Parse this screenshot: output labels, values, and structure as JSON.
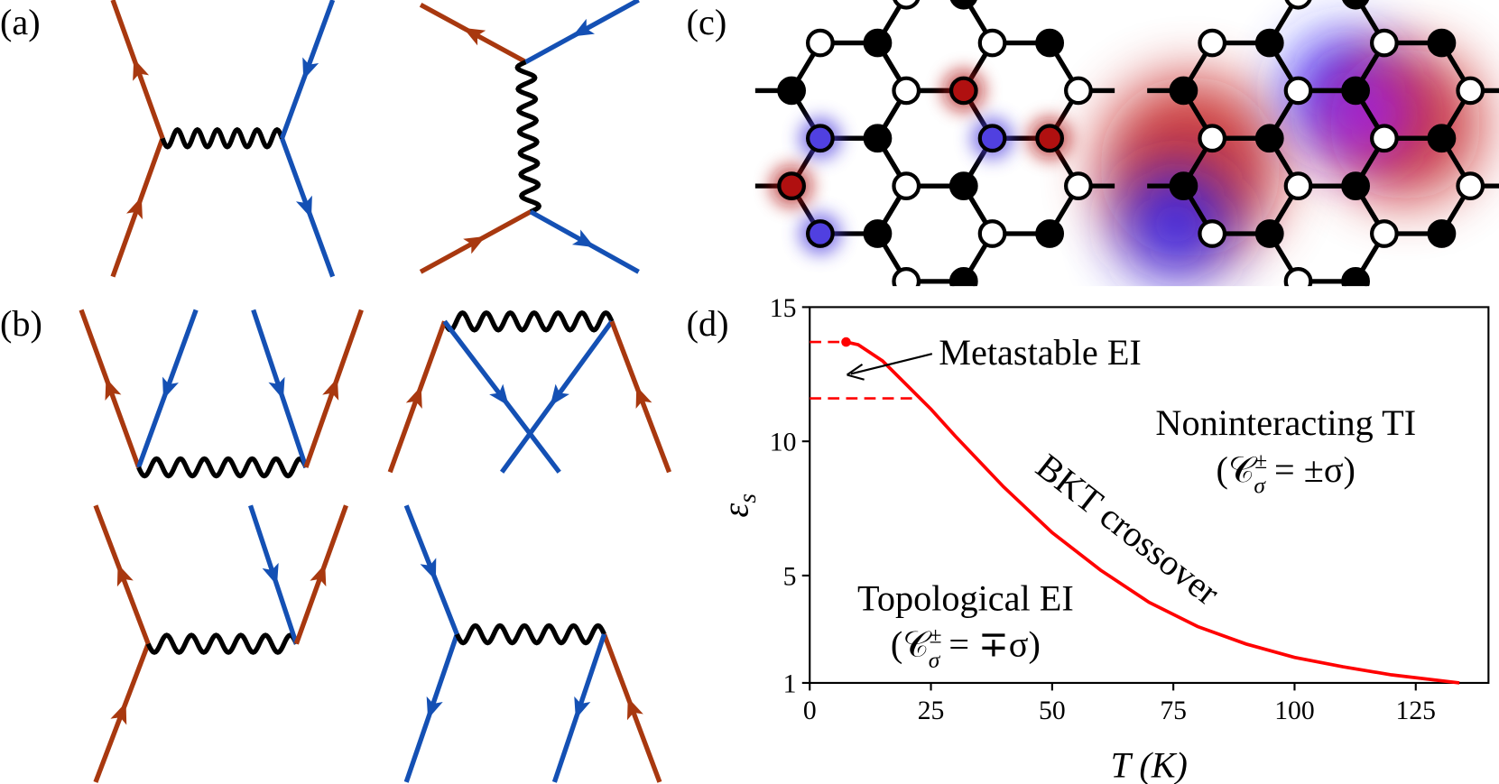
{
  "panels": {
    "a": "(a)",
    "b": "(b)",
    "c": "(c)",
    "d": "(d)"
  },
  "chart_data": {
    "type": "line",
    "x_label": "T (K)",
    "y_label": "ε",
    "y_label_sub": "s",
    "x": [
      7.5,
      10,
      15,
      20,
      25,
      30,
      40,
      50,
      60,
      70,
      80,
      90,
      100,
      110,
      120,
      134
    ],
    "series": [
      {
        "color": "#ff0000",
        "values": [
          13.7,
          13.6,
          13.0,
          12.1,
          11.2,
          10.2,
          8.3,
          6.6,
          5.2,
          4.0,
          3.1,
          2.45,
          1.95,
          1.6,
          1.3,
          1.0
        ]
      }
    ],
    "reference_lines": [
      {
        "y": 13.7,
        "x": 7.5
      },
      {
        "y": 11.6,
        "x": 22
      }
    ],
    "xlim": [
      0,
      140
    ],
    "xticks": [
      0,
      25,
      50,
      75,
      100,
      125
    ],
    "ylim": [
      1,
      15
    ],
    "yticks": [
      1,
      5,
      10,
      15
    ],
    "annotations": [
      {
        "text": "Metastable EI"
      },
      {
        "text": "Noninteracting TI",
        "formula": {
          "base": "(𝒞",
          "sup": "±",
          "sub": "σ",
          "rest": " = ±σ)"
        }
      },
      {
        "text": "BKT crossover"
      },
      {
        "text": "Topological EI",
        "formula": {
          "base": "(𝒞",
          "sup": "±",
          "sub": "σ",
          "rest": " = ∓σ)"
        }
      }
    ]
  }
}
